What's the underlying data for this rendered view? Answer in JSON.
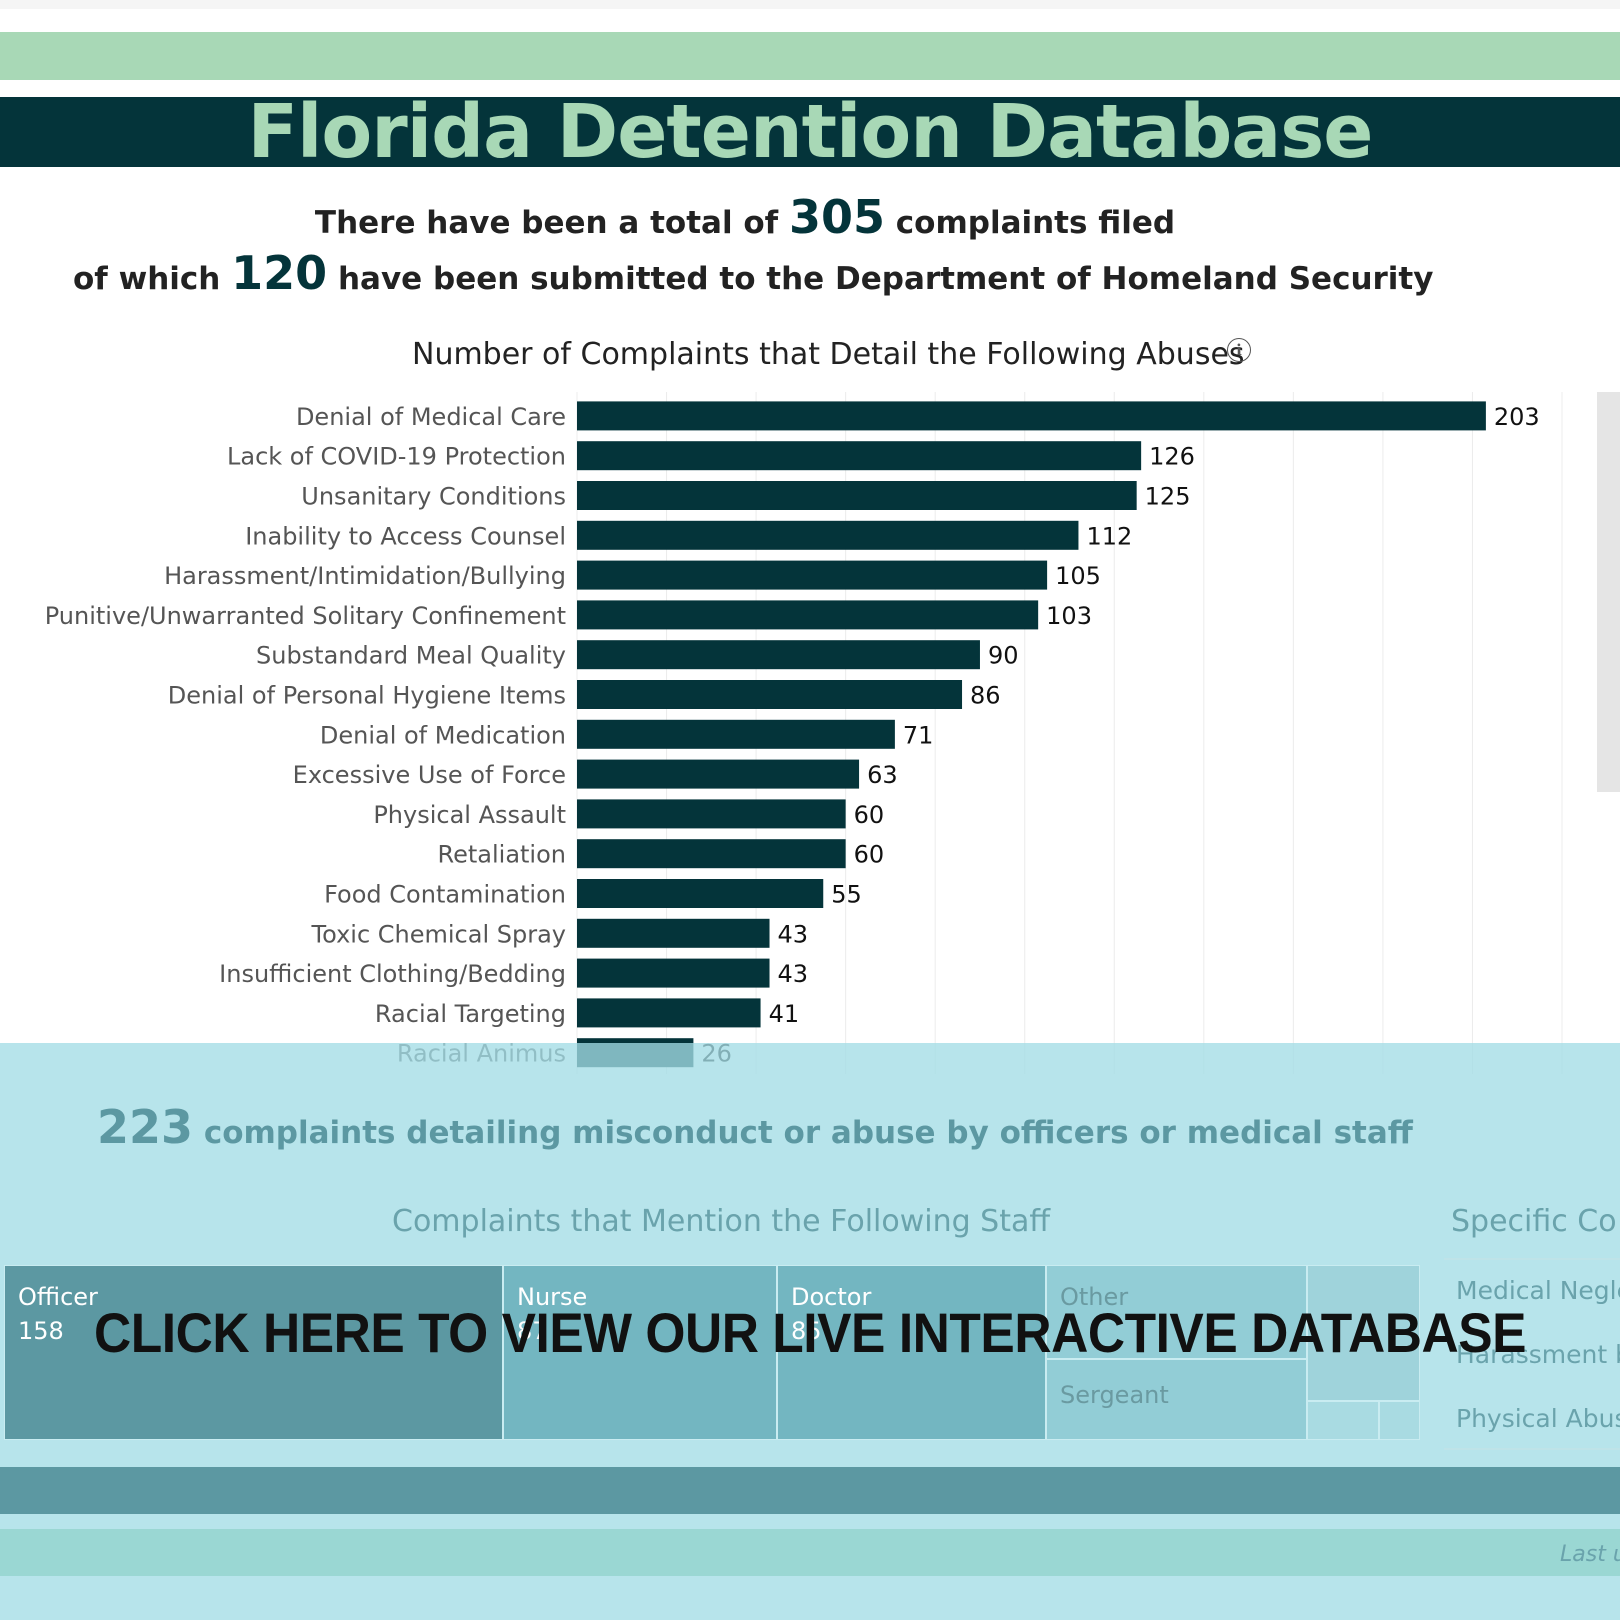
{
  "header": {
    "title": "Florida Detention Database"
  },
  "summary": {
    "line1_prefix": "There have been a total of",
    "total_complaints": "305",
    "line1_suffix": "complaints filed",
    "line2_prefix": "of which",
    "dhs_submitted": "120",
    "line2_suffix": "have been submitted to the Department of Homeland Security"
  },
  "colors": {
    "brand_dark": "#04343a",
    "brand_green": "#a8d8b6",
    "overlay_teal": "#a3dce5",
    "bar_color": "#04343a"
  },
  "chart_data": {
    "type": "bar",
    "orientation": "horizontal",
    "title": "Number of Complaints that Detail the Following Abuses",
    "categories": [
      "Denial of Medical Care",
      "Lack of COVID-19 Protection",
      "Unsanitary Conditions",
      "Inability to Access Counsel",
      "Harassment/Intimidation/Bullying",
      "Punitive/Unwarranted Solitary Confinement",
      "Substandard Meal Quality",
      "Denial of Personal Hygiene Items",
      "Denial of Medication",
      "Excessive Use of Force",
      "Physical Assault",
      "Retaliation",
      "Food Contamination",
      "Toxic Chemical Spray",
      "Insufficient Clothing/Bedding",
      "Racial Targeting",
      "Racial Animus"
    ],
    "values": [
      203,
      126,
      125,
      112,
      105,
      103,
      90,
      86,
      71,
      63,
      60,
      60,
      55,
      43,
      43,
      41,
      26
    ],
    "xlim": [
      0,
      220
    ],
    "grid": true,
    "info_icon": "info-icon"
  },
  "staff": {
    "total": "223",
    "label": "complaints detailing misconduct or abuse by officers or medical staff",
    "treemap_title": "Complaints that Mention the Following Staff",
    "officer": {
      "name": "Officer",
      "count": "158"
    },
    "nurse": {
      "name": "Nurse",
      "count": "87"
    },
    "doctor": {
      "name": "Doctor",
      "count": "85"
    },
    "other": {
      "name": "Other"
    },
    "sergeant": {
      "name": "Sergeant"
    }
  },
  "specific": {
    "title": "Specific Co",
    "items": [
      "Medical Negle",
      "Harassment b",
      "Physical Abus"
    ]
  },
  "cta": {
    "label": "CLICK HERE TO VIEW OUR LIVE INTERACTIVE DATABASE"
  },
  "footer": {
    "last_updated": "Last u"
  }
}
